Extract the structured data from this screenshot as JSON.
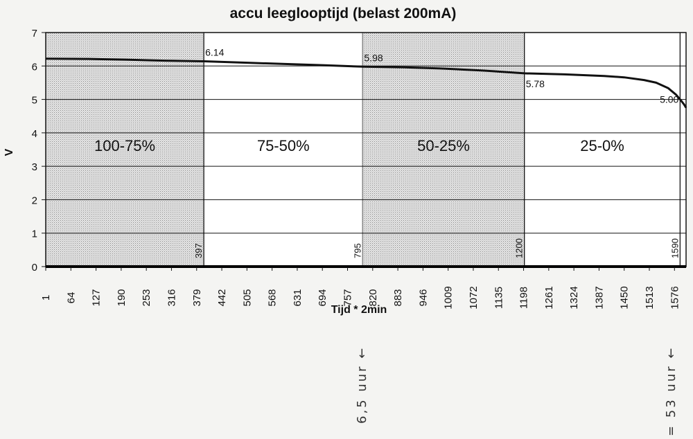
{
  "chart_data": {
    "type": "line",
    "title": "accu leeglooptijd (belast 200mA)",
    "xlabel": "Tijd * 2min",
    "ylabel": "V",
    "ylim": [
      0,
      7
    ],
    "yticks": [
      0,
      1,
      2,
      3,
      4,
      5,
      6,
      7
    ],
    "xticks": [
      1,
      64,
      127,
      190,
      253,
      316,
      379,
      442,
      505,
      568,
      631,
      694,
      757,
      820,
      883,
      946,
      1009,
      1072,
      1135,
      1198,
      1261,
      1324,
      1387,
      1450,
      1513,
      1576
    ],
    "xlim": [
      1,
      1605
    ],
    "grid": "horizontal",
    "series": [
      {
        "x": [
          1,
          100,
          200,
          300,
          397,
          500,
          600,
          700,
          795,
          900,
          1000,
          1100,
          1200,
          1300,
          1400,
          1450,
          1500,
          1530,
          1560,
          1580,
          1590,
          1600,
          1605
        ],
        "values": [
          6.22,
          6.21,
          6.19,
          6.16,
          6.14,
          6.1,
          6.06,
          6.02,
          5.98,
          5.96,
          5.92,
          5.86,
          5.78,
          5.75,
          5.7,
          5.66,
          5.58,
          5.5,
          5.34,
          5.14,
          5.0,
          4.85,
          4.75
        ]
      }
    ],
    "zones": [
      {
        "label": "100-75%",
        "from": 1,
        "to": 397,
        "shaded": true,
        "end_label": "397"
      },
      {
        "label": "75-50%",
        "from": 397,
        "to": 795,
        "shaded": false,
        "end_label": "795"
      },
      {
        "label": "50-25%",
        "from": 795,
        "to": 1200,
        "shaded": true,
        "end_label": "1200"
      },
      {
        "label": "25-0%",
        "from": 1200,
        "to": 1590,
        "shaded": false,
        "end_label": "1590"
      }
    ],
    "data_labels": [
      {
        "x": 397,
        "y": 6.14,
        "text": "6.14"
      },
      {
        "x": 795,
        "y": 5.98,
        "text": "5.98"
      },
      {
        "x": 1200,
        "y": 5.78,
        "text": "5.78"
      },
      {
        "x": 1590,
        "y": 5.0,
        "text": "5.00"
      }
    ]
  },
  "annotations": {
    "left": "6,5 uur ←",
    "right": "= 53 uur ←"
  }
}
